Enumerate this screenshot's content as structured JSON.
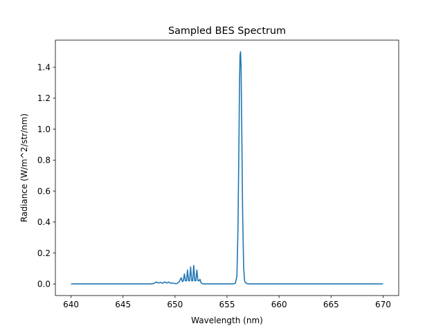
{
  "chart_data": {
    "type": "line",
    "title": "Sampled BES Spectrum",
    "xlabel": "Wavelength (nm)",
    "ylabel": "Radiance (W/m^2/str/nm)",
    "xlim": [
      638.5,
      671.5
    ],
    "ylim": [
      -0.075,
      1.575
    ],
    "xticks": [
      640,
      645,
      650,
      655,
      660,
      665,
      670
    ],
    "xtick_labels": [
      "640",
      "645",
      "650",
      "655",
      "660",
      "665",
      "670"
    ],
    "yticks": [
      0.0,
      0.2,
      0.4,
      0.6,
      0.8,
      1.0,
      1.2,
      1.4
    ],
    "ytick_labels": [
      "0.0",
      "0.2",
      "0.4",
      "0.6",
      "0.8",
      "1.0",
      "1.2",
      "1.4"
    ],
    "grid": false,
    "series": [
      {
        "color": "#1f77b4",
        "x": [
          640,
          647.8,
          648.0,
          648.2,
          648.4,
          648.6,
          648.8,
          649.0,
          649.2,
          649.4,
          649.6,
          649.8,
          650.0,
          650.2,
          650.4,
          650.6,
          650.7,
          650.8,
          650.9,
          651.0,
          651.1,
          651.2,
          651.3,
          651.4,
          651.5,
          651.6,
          651.7,
          651.8,
          651.9,
          652.0,
          652.1,
          652.2,
          652.3,
          652.4,
          652.5,
          652.6,
          652.8,
          653.0,
          655.6,
          655.8,
          655.95,
          656.05,
          656.15,
          656.2,
          656.25,
          656.3,
          656.35,
          656.4,
          656.5,
          656.6,
          656.7,
          656.9,
          657.2,
          670
        ],
        "y": [
          0,
          0,
          0.005,
          0.012,
          0.006,
          0.01,
          0.004,
          0.013,
          0.006,
          0.012,
          0.004,
          0.006,
          0.002,
          0.003,
          0.015,
          0.04,
          0.015,
          0.02,
          0.065,
          0.02,
          0.02,
          0.09,
          0.02,
          0.02,
          0.11,
          0.02,
          0.02,
          0.12,
          0.02,
          0.02,
          0.09,
          0.02,
          0.02,
          0.03,
          0.008,
          0.002,
          0,
          0,
          0,
          0.005,
          0.05,
          0.35,
          0.95,
          1.3,
          1.48,
          1.5,
          1.4,
          1.1,
          0.45,
          0.1,
          0.015,
          0.002,
          0,
          0
        ]
      }
    ]
  }
}
